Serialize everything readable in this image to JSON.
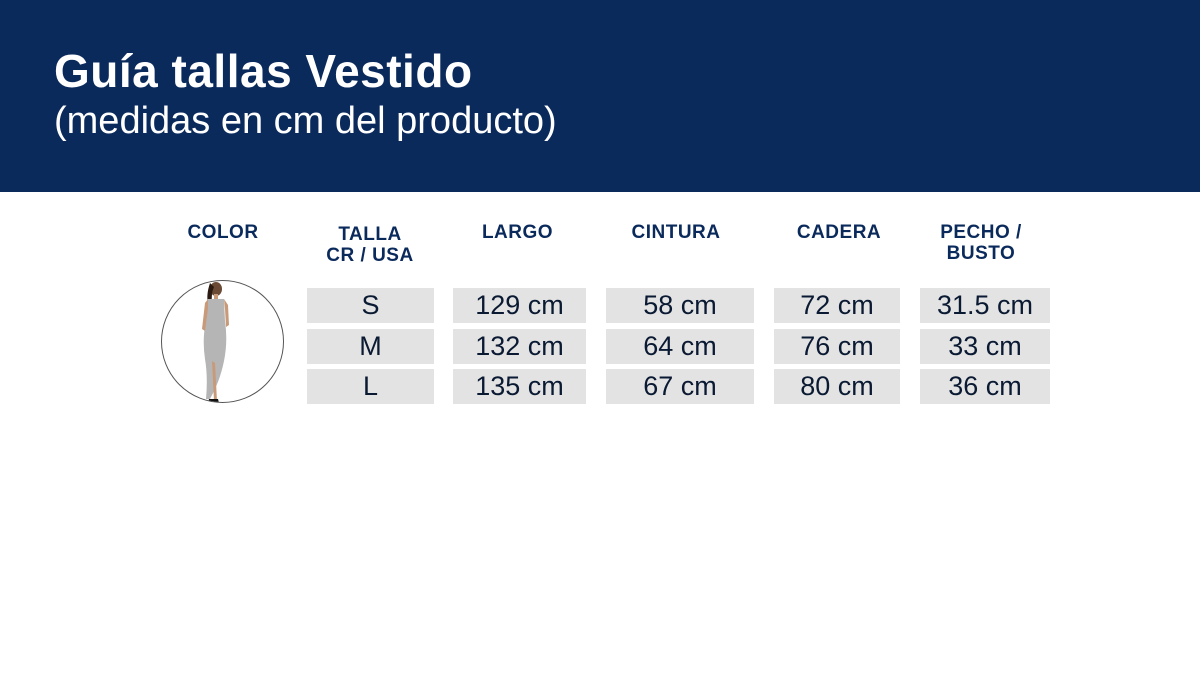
{
  "header": {
    "title": "Guía tallas Vestido",
    "subtitle": "(medidas en cm del producto)"
  },
  "colors": {
    "banner": "#0b2a5c",
    "header_text": "#0b2a5c",
    "cell_bg": "#e3e3e3",
    "dress": "#b5b5b5"
  },
  "table": {
    "columns": {
      "color": [
        "COLOR"
      ],
      "talla": [
        "TALLA",
        "CR / USA"
      ],
      "largo": [
        "LARGO"
      ],
      "cintura": [
        "CINTURA"
      ],
      "cadera": [
        "CADERA"
      ],
      "pecho": [
        "PECHO /",
        "BUSTO"
      ]
    },
    "rows": [
      {
        "talla": "S",
        "largo": "129 cm",
        "cintura": "58 cm",
        "cadera": "72 cm",
        "pecho": "31.5 cm"
      },
      {
        "talla": "M",
        "largo": "132 cm",
        "cintura": "64 cm",
        "cadera": "76 cm",
        "pecho": "33 cm"
      },
      {
        "talla": "L",
        "largo": "135 cm",
        "cintura": "67 cm",
        "cadera": "80 cm",
        "pecho": "36 cm"
      }
    ]
  },
  "product_image": {
    "icon": "dress-photo"
  }
}
